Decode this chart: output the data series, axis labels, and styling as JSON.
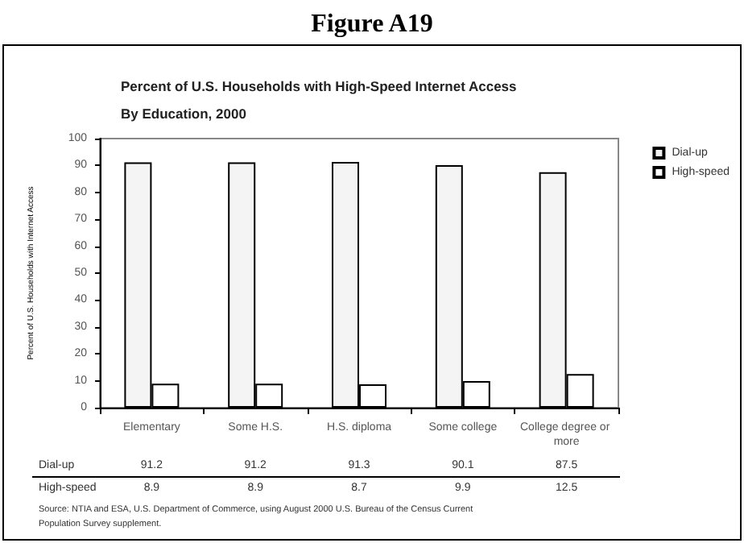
{
  "chart_data": {
    "type": "bar",
    "title": "Figure A19",
    "subtitle": "Percent of U.S. Households with High-Speed Internet Access\nBy Education, 2000",
    "ylabel": "Percent of U.S. Households with Internet Access",
    "categories": [
      "Elementary",
      "Some H.S.",
      "H.S. diploma",
      "Some college",
      "College degree or more"
    ],
    "series": [
      {
        "name": "Dial-up",
        "color": "#f4f4f4",
        "values": [
          91.2,
          91.2,
          91.3,
          90.1,
          87.5
        ]
      },
      {
        "name": "High-speed",
        "color": "#ffffff",
        "values": [
          8.9,
          8.9,
          8.7,
          9.9,
          12.5
        ]
      }
    ],
    "ylim": [
      0,
      100
    ],
    "yticks": [
      0,
      10,
      20,
      30,
      40,
      50,
      60,
      70,
      80,
      90,
      100
    ],
    "grid": false,
    "legend": "top right",
    "data_labels": true,
    "annotations": [
      "Source: NTIA and ESA, U.S. Department of Commerce, using August 2000 U.S. Bureau of the Census Current Population Survey supplement."
    ]
  }
}
